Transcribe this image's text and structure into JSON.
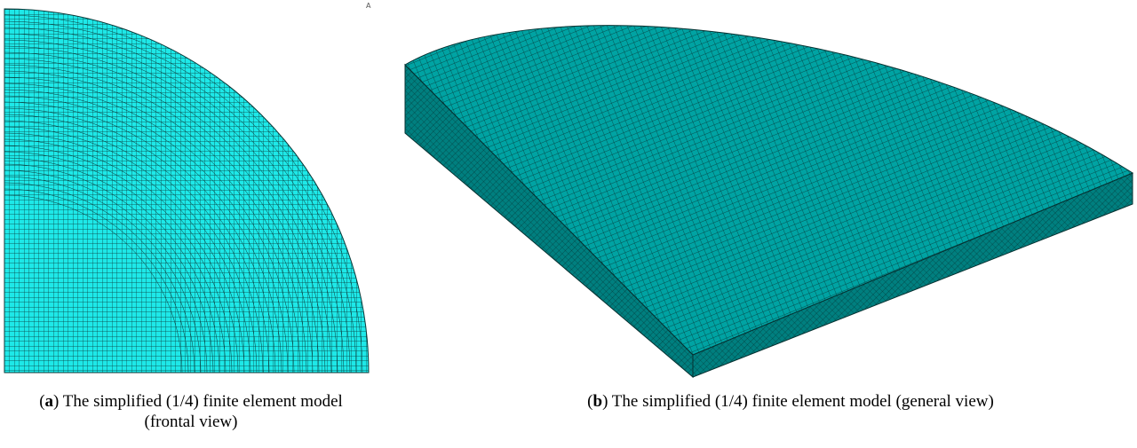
{
  "triad_label": "A",
  "panels": [
    {
      "open": "(",
      "label": "a",
      "text": ") The simplified (1/4) finite element model (frontal view)"
    },
    {
      "open": "(",
      "label": "b",
      "text": ") The simplified (1/4) finite element model (general view)"
    }
  ]
}
